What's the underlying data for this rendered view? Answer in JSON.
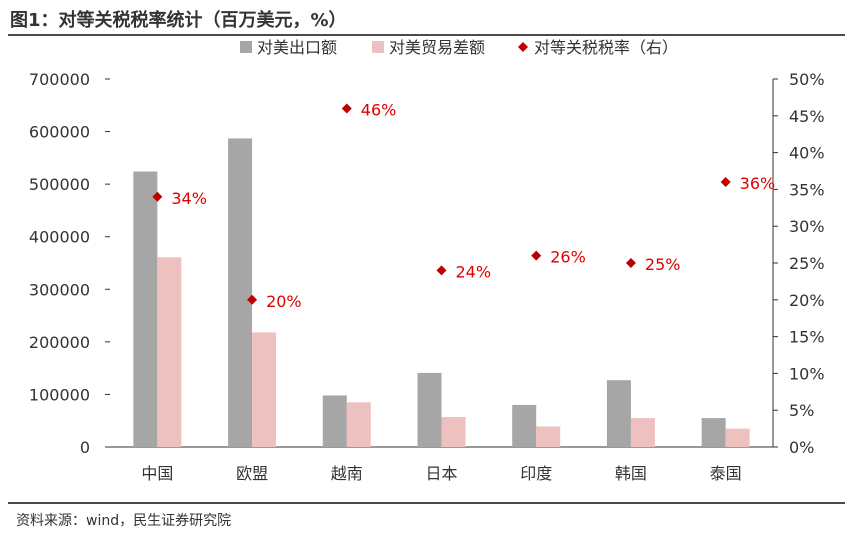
{
  "header": {
    "title": "图1：对等关税税率统计（百万美元，%）"
  },
  "footer": {
    "source": "资料来源：wind，民生证券研究院"
  },
  "colors": {
    "export": "#a6a6a6",
    "surplus": "#eec1c1",
    "rate": "#c00000",
    "axis": "#333333"
  },
  "chart_data": {
    "type": "bar",
    "title": "对等关税税率统计（百万美元，%）",
    "categories": [
      "中国",
      "欧盟",
      "越南",
      "日本",
      "印度",
      "韩国",
      "泰国"
    ],
    "series": [
      {
        "name": "对美出口额",
        "kind": "bar",
        "axis": "left",
        "values": [
          524000,
          587000,
          98000,
          141000,
          80000,
          127000,
          55000
        ]
      },
      {
        "name": "对美贸易差额",
        "kind": "bar",
        "axis": "left",
        "values": [
          361000,
          218000,
          85000,
          57000,
          39000,
          55000,
          35000
        ]
      },
      {
        "name": "对等关税税率（右）",
        "kind": "scatter",
        "axis": "right",
        "marker": "diamond",
        "values": [
          34,
          20,
          46,
          24,
          26,
          25,
          36
        ],
        "labels": [
          "34%",
          "20%",
          "46%",
          "24%",
          "26%",
          "25%",
          "36%"
        ]
      }
    ],
    "y_left": {
      "min": 0,
      "max": 700000,
      "ticks": [
        "0",
        "100000",
        "200000",
        "300000",
        "400000",
        "500000",
        "600000",
        "700000"
      ]
    },
    "y_right": {
      "min": 0,
      "max": 50,
      "ticks": [
        "0%",
        "5%",
        "10%",
        "15%",
        "20%",
        "25%",
        "30%",
        "35%",
        "40%",
        "45%",
        "50%"
      ]
    },
    "legend": {
      "position": "top",
      "items": [
        "对美出口额",
        "对美贸易差额",
        "对等关税税率（右）"
      ]
    },
    "grid": false
  }
}
